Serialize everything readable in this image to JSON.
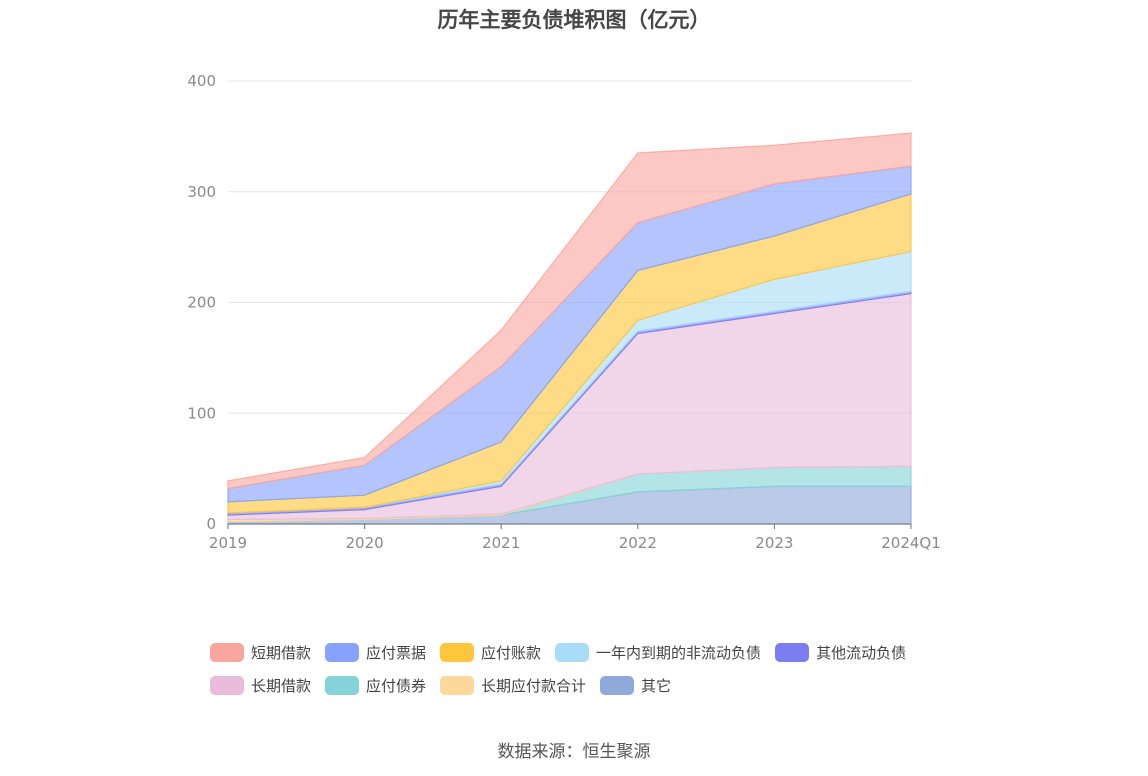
{
  "chart_data": {
    "type": "area",
    "stacked": true,
    "title": "历年主要负债堆积图（亿元）",
    "categories": [
      "2019",
      "2020",
      "2021",
      "2022",
      "2023",
      "2024Q1"
    ],
    "y_ticks": [
      "0",
      "100",
      "200",
      "300",
      "400"
    ],
    "ylim": [
      0,
      400
    ],
    "grid": true,
    "legend_position": "bottom",
    "series": [
      {
        "name": "其它",
        "color": "#8fa9da",
        "values": [
          2,
          4,
          8,
          29,
          34,
          34
        ]
      },
      {
        "name": "应付债券",
        "color": "#85d3d6",
        "values": [
          0,
          0,
          0,
          16,
          17,
          18
        ]
      },
      {
        "name": "长期应付款合计",
        "color": "#fdd89b",
        "values": [
          2,
          1,
          1,
          0,
          0,
          0
        ]
      },
      {
        "name": "长期借款",
        "color": "#e9bcdc",
        "values": [
          4,
          8,
          25,
          127,
          139,
          156
        ]
      },
      {
        "name": "其他流动负债",
        "color": "#7b7ef0",
        "values": [
          2,
          2,
          2,
          2,
          2,
          2
        ]
      },
      {
        "name": "一年内到期的非流动负债",
        "color": "#a9ddf7",
        "values": [
          0,
          0,
          3,
          10,
          29,
          36
        ]
      },
      {
        "name": "应付账款",
        "color": "#fdc63c",
        "values": [
          10,
          11,
          35,
          45,
          39,
          52
        ]
      },
      {
        "name": "应付票据",
        "color": "#86a2fb",
        "values": [
          12,
          27,
          68,
          43,
          47,
          25
        ]
      },
      {
        "name": "短期借款",
        "color": "#f9a79e",
        "values": [
          7,
          7,
          33,
          63,
          35,
          30
        ]
      }
    ],
    "legend_rows": [
      [
        "短期借款",
        "应付票据",
        "应付账款",
        "一年内到期的非流动负债",
        "其他流动负债"
      ],
      [
        "长期借款",
        "应付债券",
        "长期应付款合计",
        "其它"
      ]
    ]
  },
  "source": "数据来源：恒生聚源"
}
